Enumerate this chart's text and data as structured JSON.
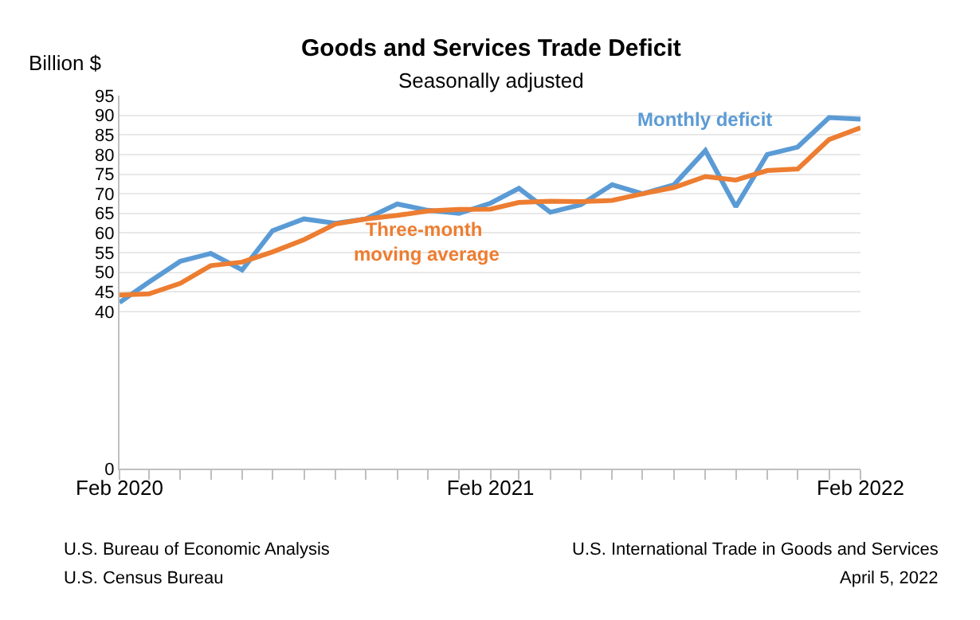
{
  "chart_data": {
    "type": "line",
    "title": "Goods and Services Trade Deficit",
    "subtitle": "Seasonally adjusted",
    "ylabel": "Billion $",
    "x": [
      "2020-02",
      "2020-03",
      "2020-04",
      "2020-05",
      "2020-06",
      "2020-07",
      "2020-08",
      "2020-09",
      "2020-10",
      "2020-11",
      "2020-12",
      "2021-01",
      "2021-02",
      "2021-03",
      "2021-04",
      "2021-05",
      "2021-06",
      "2021-07",
      "2021-08",
      "2021-09",
      "2021-10",
      "2021-11",
      "2021-12",
      "2022-01",
      "2022-02"
    ],
    "series": [
      {
        "name": "Monthly deficit",
        "color": "#5b9bd5",
        "values": [
          42.3,
          47.5,
          52.8,
          54.8,
          50.6,
          60.6,
          63.6,
          62.5,
          63.6,
          67.4,
          65.8,
          65.0,
          67.6,
          71.4,
          65.3,
          67.2,
          72.3,
          70.0,
          72.3,
          81.0,
          66.7,
          80.0,
          81.9,
          89.4,
          89.0
        ]
      },
      {
        "name": "Three-month moving average",
        "color": "#ed7d31",
        "values": [
          44.2,
          44.5,
          47.2,
          51.7,
          52.6,
          55.2,
          58.3,
          62.3,
          63.6,
          64.5,
          65.6,
          66.0,
          66.1,
          67.8,
          68.1,
          68.0,
          68.3,
          70.0,
          71.6,
          74.4,
          73.5,
          75.9,
          76.3,
          83.8,
          86.8
        ]
      }
    ],
    "xlim": [
      "2020-02",
      "2022-02"
    ],
    "xticks": [
      {
        "value": "2020-02",
        "label": "Feb 2020"
      },
      {
        "value": "2021-02",
        "label": "Feb 2021"
      },
      {
        "value": "2022-02",
        "label": "Feb 2022"
      }
    ],
    "ylim": [
      0,
      95
    ],
    "yticks": [
      0,
      40,
      45,
      50,
      55,
      60,
      65,
      70,
      75,
      80,
      85,
      90,
      95
    ],
    "grid": "y",
    "legend": false,
    "marker": "none",
    "line_style": "solid",
    "annotations": [
      "U.S. Bureau of Economic Analysis",
      "U.S. Census Bureau",
      "U.S. International Trade in Goods and Services",
      "April 5, 2022"
    ]
  }
}
